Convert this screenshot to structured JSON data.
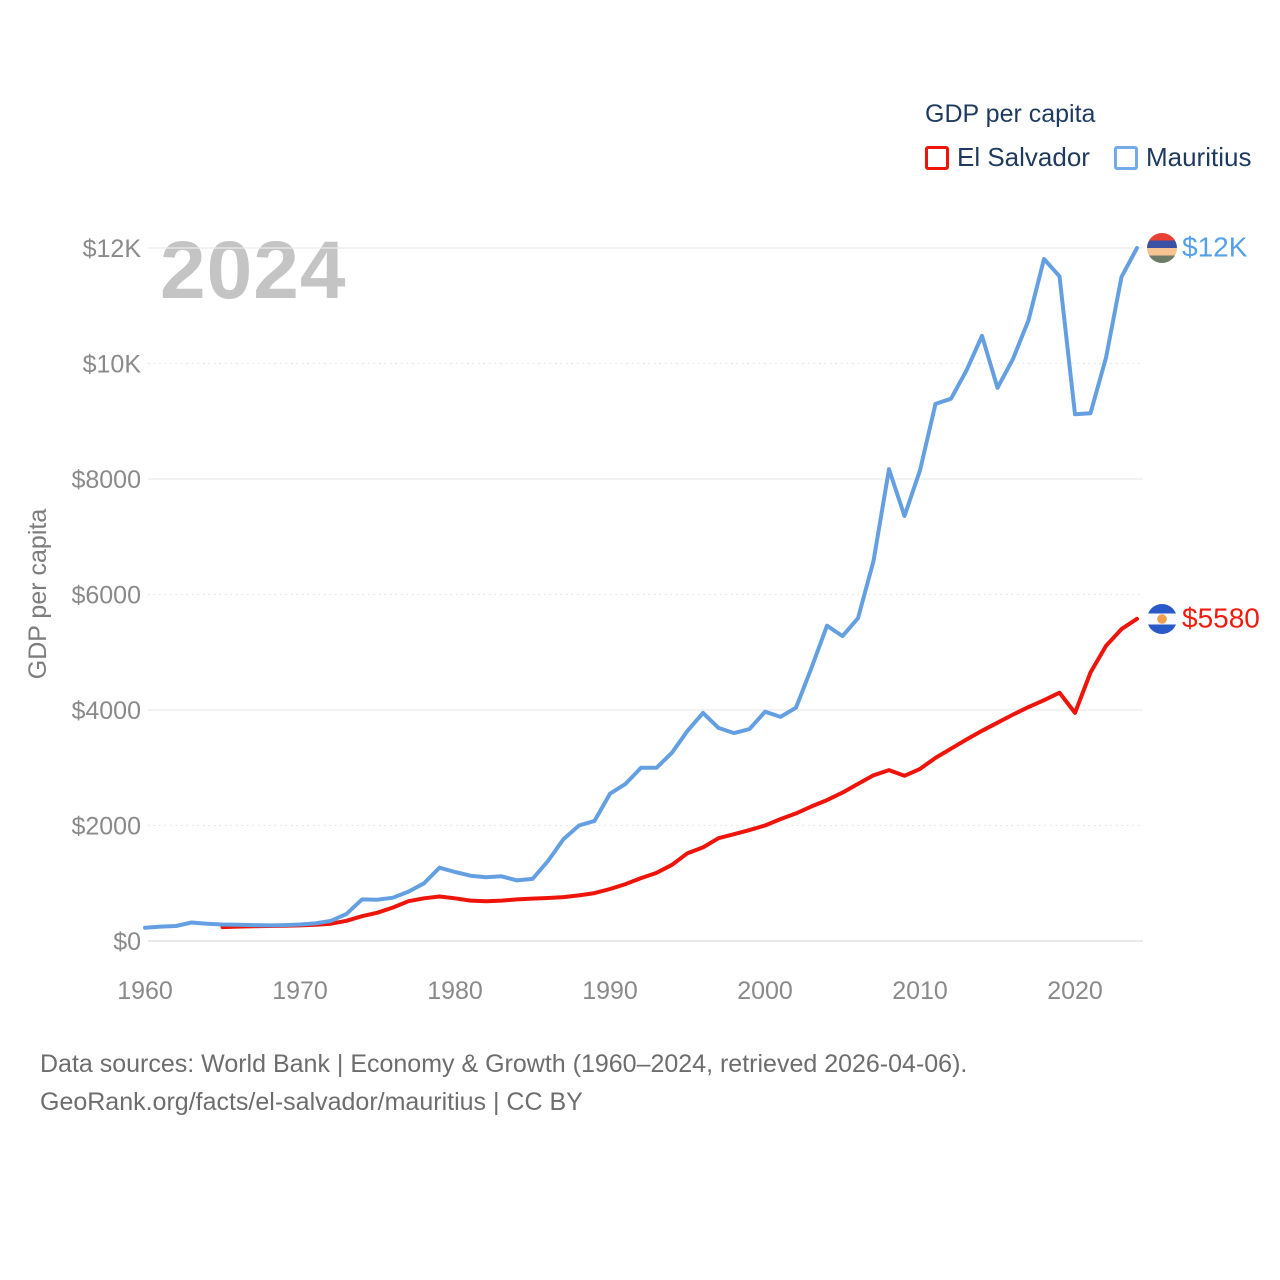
{
  "legend": {
    "title": "GDP per capita",
    "items": [
      {
        "label": "El Salvador",
        "color": "#ee1409"
      },
      {
        "label": "Mauritius",
        "color": "#74aae8"
      }
    ]
  },
  "watermark": "2024",
  "y_axis": {
    "title": "GDP per capita",
    "ticks": [
      "$0",
      "$2000",
      "$4000",
      "$6000",
      "$8000",
      "$10K",
      "$12K"
    ],
    "tick_values": [
      0,
      2000,
      4000,
      6000,
      8000,
      10000,
      12000
    ]
  },
  "x_axis": {
    "tick_years": [
      1960,
      1970,
      1980,
      1990,
      2000,
      2010,
      2020
    ]
  },
  "end_labels": [
    {
      "series": "Mauritius",
      "label": "$12K",
      "color": "#55a0ea",
      "flag": "mauritius-flag"
    },
    {
      "series": "El Salvador",
      "label": "$5580",
      "color": "#f21b0d",
      "flag": "el-salvador-flag"
    }
  ],
  "footer": {
    "line1": "Data sources: World Bank | Economy & Growth (1960–2024, retrieved 2026-04-06).",
    "line2": "GeoRank.org/facts/el-salvador/mauritius | CC BY"
  },
  "chart_data": {
    "type": "line",
    "title": "GDP per capita",
    "xlabel": "",
    "ylabel": "GDP per capita",
    "x_range": [
      1960,
      2024
    ],
    "ylim": [
      0,
      12000
    ],
    "grid": "horizontal",
    "legend_position": "top-right",
    "series": [
      {
        "name": "El Salvador",
        "color": "#ee1409",
        "start_year": 1965,
        "end_value_label": "$5580",
        "values": [
          240,
          250,
          255,
          260,
          265,
          270,
          280,
          300,
          350,
          430,
          490,
          580,
          690,
          740,
          770,
          740,
          700,
          690,
          700,
          720,
          735,
          745,
          760,
          790,
          830,
          900,
          985,
          1090,
          1180,
          1320,
          1520,
          1620,
          1780,
          1850,
          1920,
          2000,
          2110,
          2210,
          2330,
          2440,
          2570,
          2720,
          2870,
          2960,
          2860,
          2980,
          3170,
          3330,
          3490,
          3640,
          3780,
          3920,
          4050,
          4170,
          4300,
          3950,
          4650,
          5110,
          5400,
          5580
        ]
      },
      {
        "name": "Mauritius",
        "color": "#64a0e1",
        "start_year": 1960,
        "end_value_label": "$12K",
        "values": [
          230,
          250,
          260,
          320,
          300,
          285,
          280,
          275,
          270,
          275,
          285,
          305,
          350,
          470,
          720,
          715,
          750,
          855,
          1000,
          1270,
          1195,
          1130,
          1105,
          1120,
          1050,
          1075,
          1385,
          1765,
          2000,
          2080,
          2550,
          2720,
          3000,
          3000,
          3260,
          3640,
          3950,
          3690,
          3600,
          3670,
          3970,
          3880,
          4040,
          4730,
          5460,
          5280,
          5590,
          6580,
          8170,
          7360,
          8150,
          9300,
          9390,
          9880,
          10480,
          9580,
          10080,
          10750,
          11810,
          11510,
          9120,
          9140,
          10100,
          11500,
          12000
        ]
      }
    ]
  }
}
